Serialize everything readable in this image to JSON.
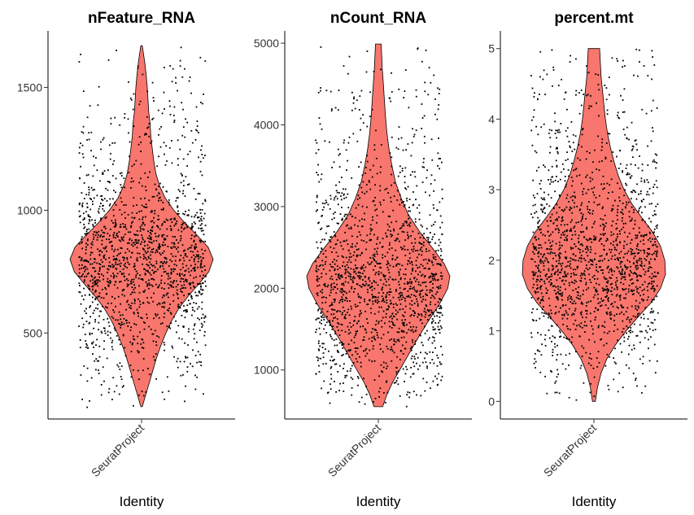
{
  "chart_data": [
    {
      "type": "violin",
      "title": "nFeature_RNA",
      "xlabel": "Identity",
      "ylabel": "",
      "categories": [
        "SeuratProject"
      ],
      "yticks": [
        500,
        1000,
        1500
      ],
      "ylim": [
        150,
        1730
      ],
      "data_range": [
        200,
        1670
      ],
      "fill_color": "#F8766D",
      "point_color": "#000000",
      "density": [
        {
          "y": 200,
          "w": 0.01
        },
        {
          "y": 250,
          "w": 0.06
        },
        {
          "y": 300,
          "w": 0.11
        },
        {
          "y": 350,
          "w": 0.16
        },
        {
          "y": 400,
          "w": 0.21
        },
        {
          "y": 450,
          "w": 0.27
        },
        {
          "y": 500,
          "w": 0.34
        },
        {
          "y": 550,
          "w": 0.42
        },
        {
          "y": 600,
          "w": 0.52
        },
        {
          "y": 650,
          "w": 0.65
        },
        {
          "y": 700,
          "w": 0.8
        },
        {
          "y": 750,
          "w": 0.94
        },
        {
          "y": 800,
          "w": 1.0
        },
        {
          "y": 850,
          "w": 0.93
        },
        {
          "y": 900,
          "w": 0.77
        },
        {
          "y": 950,
          "w": 0.6
        },
        {
          "y": 1000,
          "w": 0.45
        },
        {
          "y": 1050,
          "w": 0.33
        },
        {
          "y": 1100,
          "w": 0.25
        },
        {
          "y": 1150,
          "w": 0.2
        },
        {
          "y": 1200,
          "w": 0.17
        },
        {
          "y": 1250,
          "w": 0.15
        },
        {
          "y": 1300,
          "w": 0.13
        },
        {
          "y": 1350,
          "w": 0.12
        },
        {
          "y": 1400,
          "w": 0.1
        },
        {
          "y": 1450,
          "w": 0.09
        },
        {
          "y": 1500,
          "w": 0.08
        },
        {
          "y": 1550,
          "w": 0.065
        },
        {
          "y": 1600,
          "w": 0.045
        },
        {
          "y": 1670,
          "w": 0.01
        }
      ],
      "points_n": 1600
    },
    {
      "type": "violin",
      "title": "nCount_RNA",
      "xlabel": "Identity",
      "ylabel": "",
      "categories": [
        "SeuratProject"
      ],
      "yticks": [
        1000,
        2000,
        3000,
        4000,
        5000
      ],
      "ylim": [
        400,
        5150
      ],
      "data_range": [
        550,
        4990
      ],
      "fill_color": "#F8766D",
      "point_color": "#000000",
      "density": [
        {
          "y": 550,
          "w": 0.06
        },
        {
          "y": 700,
          "w": 0.12
        },
        {
          "y": 850,
          "w": 0.2
        },
        {
          "y": 1000,
          "w": 0.3
        },
        {
          "y": 1200,
          "w": 0.43
        },
        {
          "y": 1400,
          "w": 0.56
        },
        {
          "y": 1600,
          "w": 0.7
        },
        {
          "y": 1800,
          "w": 0.85
        },
        {
          "y": 2000,
          "w": 0.97
        },
        {
          "y": 2150,
          "w": 1.0
        },
        {
          "y": 2300,
          "w": 0.92
        },
        {
          "y": 2500,
          "w": 0.75
        },
        {
          "y": 2700,
          "w": 0.57
        },
        {
          "y": 2900,
          "w": 0.42
        },
        {
          "y": 3100,
          "w": 0.32
        },
        {
          "y": 3300,
          "w": 0.24
        },
        {
          "y": 3500,
          "w": 0.19
        },
        {
          "y": 3700,
          "w": 0.15
        },
        {
          "y": 3900,
          "w": 0.12
        },
        {
          "y": 4100,
          "w": 0.1
        },
        {
          "y": 4300,
          "w": 0.085
        },
        {
          "y": 4500,
          "w": 0.07
        },
        {
          "y": 4700,
          "w": 0.055
        },
        {
          "y": 4990,
          "w": 0.04
        }
      ],
      "points_n": 1600
    },
    {
      "type": "violin",
      "title": "percent.mt",
      "xlabel": "Identity",
      "ylabel": "",
      "categories": [
        "SeuratProject"
      ],
      "yticks": [
        0,
        1,
        2,
        3,
        4,
        5
      ],
      "ylim": [
        -0.25,
        5.25
      ],
      "data_range": [
        0,
        5
      ],
      "fill_color": "#F8766D",
      "point_color": "#000000",
      "density": [
        {
          "y": 0.0,
          "w": 0.02
        },
        {
          "y": 0.2,
          "w": 0.05
        },
        {
          "y": 0.4,
          "w": 0.1
        },
        {
          "y": 0.6,
          "w": 0.18
        },
        {
          "y": 0.8,
          "w": 0.3
        },
        {
          "y": 1.0,
          "w": 0.45
        },
        {
          "y": 1.2,
          "w": 0.62
        },
        {
          "y": 1.4,
          "w": 0.8
        },
        {
          "y": 1.6,
          "w": 0.93
        },
        {
          "y": 1.8,
          "w": 1.0
        },
        {
          "y": 2.0,
          "w": 0.99
        },
        {
          "y": 2.2,
          "w": 0.93
        },
        {
          "y": 2.4,
          "w": 0.82
        },
        {
          "y": 2.6,
          "w": 0.67
        },
        {
          "y": 2.8,
          "w": 0.53
        },
        {
          "y": 3.0,
          "w": 0.42
        },
        {
          "y": 3.2,
          "w": 0.34
        },
        {
          "y": 3.4,
          "w": 0.28
        },
        {
          "y": 3.6,
          "w": 0.23
        },
        {
          "y": 3.8,
          "w": 0.19
        },
        {
          "y": 4.0,
          "w": 0.16
        },
        {
          "y": 4.2,
          "w": 0.14
        },
        {
          "y": 4.4,
          "w": 0.12
        },
        {
          "y": 4.6,
          "w": 0.1
        },
        {
          "y": 4.8,
          "w": 0.09
        },
        {
          "y": 5.0,
          "w": 0.08
        }
      ],
      "points_n": 1600
    }
  ]
}
